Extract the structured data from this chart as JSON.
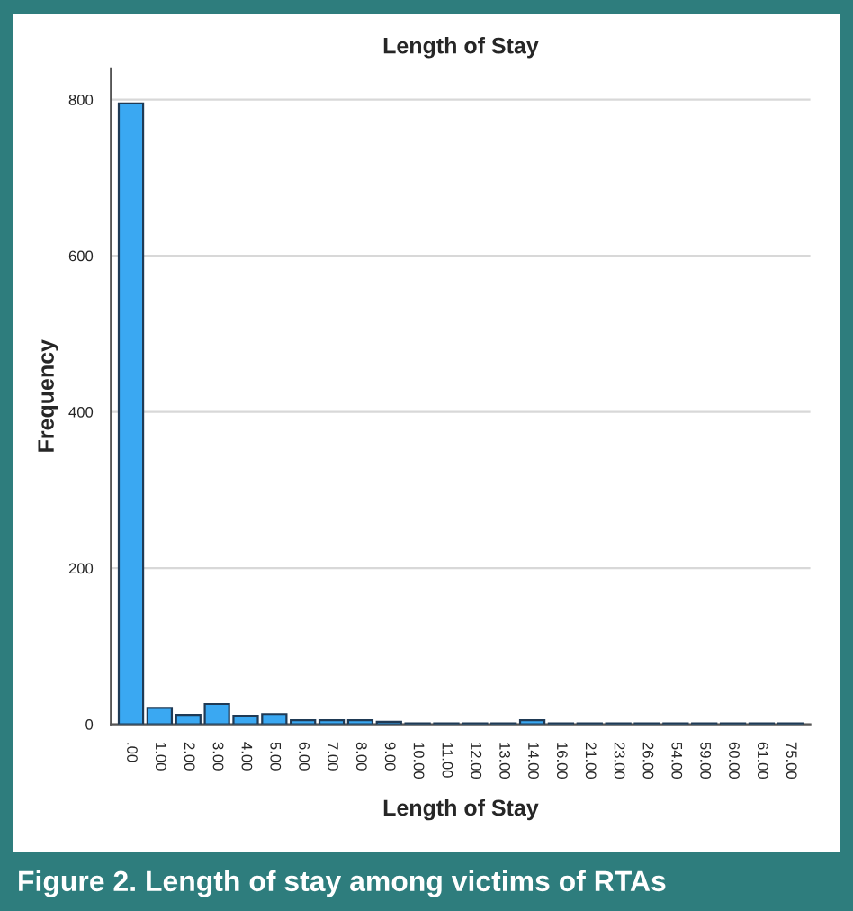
{
  "chart_data": {
    "type": "bar",
    "title": "Length of Stay",
    "xlabel": "Length of Stay",
    "ylabel": "Frequency",
    "categories": [
      ".00",
      "1.00",
      "2.00",
      "3.00",
      "4.00",
      "5.00",
      "6.00",
      "7.00",
      "8.00",
      "9.00",
      "10.00",
      "11.00",
      "12.00",
      "13.00",
      "14.00",
      "16.00",
      "21.00",
      "23.00",
      "26.00",
      "54.00",
      "59.00",
      "60.00",
      "61.00",
      "75.00"
    ],
    "values": [
      795,
      21,
      12,
      26,
      11,
      13,
      5,
      5,
      5,
      3,
      1,
      1,
      1,
      1,
      5,
      1,
      1,
      1,
      1,
      1,
      1,
      1,
      1,
      1
    ],
    "color": "#3aa8f2",
    "ylim": [
      0,
      840
    ],
    "yticks": [
      0,
      200,
      400,
      600,
      800
    ],
    "grid": "y",
    "annotations": [
      "Figure 2. Length of stay among victims of RTAs"
    ]
  }
}
